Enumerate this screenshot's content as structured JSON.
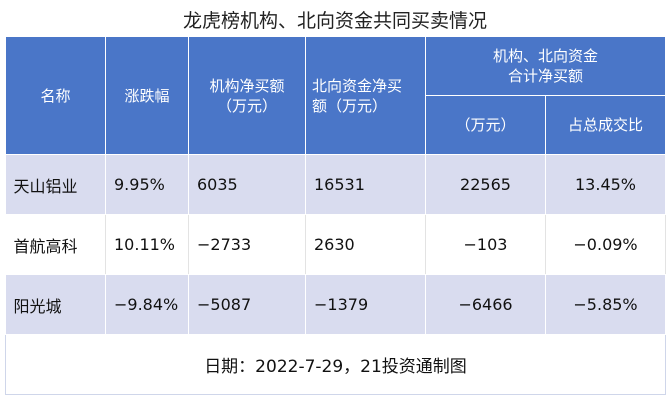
{
  "title": "龙虎榜机构、北向资金共同买卖情况",
  "header": {
    "columns": [
      [
        "名称"
      ],
      [
        "涨跌幅"
      ],
      [
        "机构净买额",
        "（万元）"
      ],
      [
        "北向资金净买",
        "额（万元）"
      ]
    ],
    "group": [
      "机构、北向资金",
      "合计净买额"
    ],
    "subcolumns": [
      "（万元）",
      "占总成交比"
    ]
  },
  "table": {
    "rows": [
      [
        "天山铝业",
        "9.95%",
        "6035",
        "16531",
        "22565",
        "13.45%"
      ],
      [
        "首航高科",
        "10.11%",
        "−2733",
        "2630",
        "−103",
        "−0.09%"
      ],
      [
        "阳光城",
        "−9.84%",
        "−5087",
        "−1379",
        "−6466",
        "−5.85%"
      ]
    ]
  },
  "footer": "日期：2022-7-29，21投资通制图"
}
